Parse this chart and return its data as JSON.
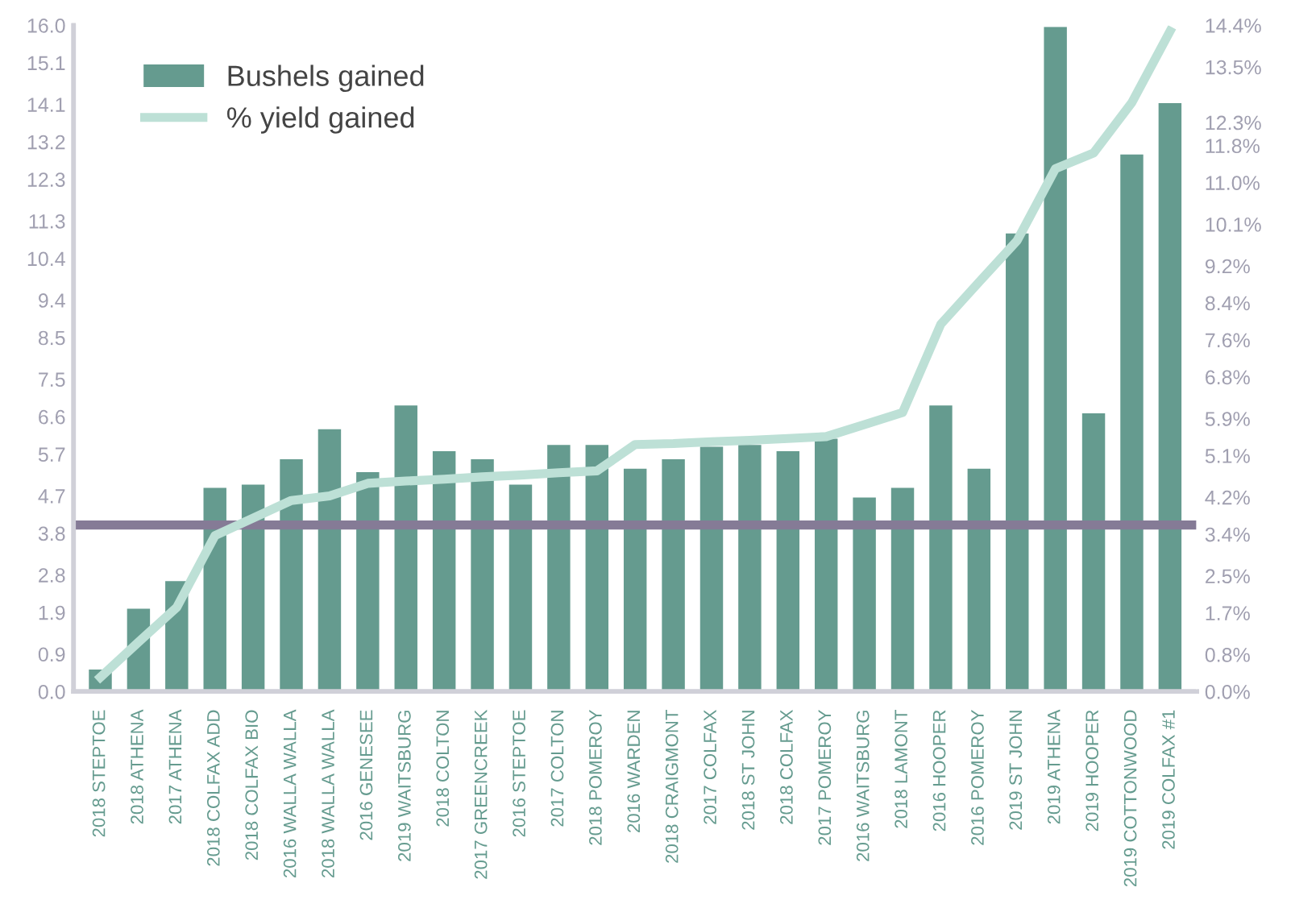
{
  "chart_data": {
    "type": "bar",
    "categories": [
      "2018 STEPTOE",
      "2018 ATHENA",
      "2017 ATHENA",
      "2018 COLFAX ADD",
      "2018 COLFAX BIO",
      "2016 WALLA WALLA",
      "2018 WALLA WALLA",
      "2016 GENESEE",
      "2019 WAITSBURG",
      "2018 COLTON",
      "2017 GREENCREEK",
      "2016 STEPTOE",
      "2017 COLTON",
      "2018 POMEROY",
      "2016 WARDEN",
      "2018 CRAIGMONT",
      "2017 COLFAX",
      "2018 ST JOHN",
      "2018 COLFAX",
      "2017 POMEROY",
      "2016 WAITSBURG",
      "2018 LAMONT",
      "2016 HOOPER",
      "2016 POMEROY",
      "2019 ST JOHN",
      "2019 ATHENA",
      "2019 HOOPER",
      "2019 COTTONWOOD",
      "2019 COLFAX #1"
    ],
    "series": [
      {
        "name": "Bushels gained",
        "color": "#659b8f",
        "values": [
          0.53,
          1.99,
          2.65,
          4.89,
          4.97,
          5.58,
          6.3,
          5.27,
          6.87,
          5.77,
          5.58,
          4.97,
          5.92,
          5.92,
          5.35,
          5.58,
          5.88,
          5.92,
          5.77,
          6.07,
          4.66,
          4.89,
          6.87,
          5.35,
          11.0,
          15.96,
          6.68,
          12.9,
          14.13
        ]
      },
      {
        "name": "% yield gained",
        "type": "line",
        "axis": "y2",
        "color": "#bde0d6",
        "values": [
          0.31,
          1.07,
          1.82,
          3.37,
          3.75,
          4.13,
          4.23,
          4.5,
          4.55,
          4.59,
          4.64,
          4.68,
          4.73,
          4.77,
          5.34,
          5.36,
          5.4,
          5.43,
          5.47,
          5.51,
          5.77,
          6.03,
          7.94,
          8.85,
          9.75,
          11.3,
          11.64,
          12.73,
          14.27
        ]
      }
    ],
    "ylim": [
      0,
      16
    ],
    "yticks": [
      {
        "value": 0,
        "label": "0.0"
      },
      {
        "value": 0.9,
        "label": "0.9"
      },
      {
        "value": 1.9,
        "label": "1.9"
      },
      {
        "value": 2.8,
        "label": "2.8"
      },
      {
        "value": 3.8,
        "label": "3.8"
      },
      {
        "value": 4.7,
        "label": "4.7"
      },
      {
        "value": 5.7,
        "label": "5.7"
      },
      {
        "value": 6.6,
        "label": "6.6"
      },
      {
        "value": 7.5,
        "label": "7.5"
      },
      {
        "value": 8.5,
        "label": "8.5"
      },
      {
        "value": 9.4,
        "label": "9.4"
      },
      {
        "value": 10.4,
        "label": "10.4"
      },
      {
        "value": 11.3,
        "label": "11.3"
      },
      {
        "value": 12.3,
        "label": "12.3"
      },
      {
        "value": 13.2,
        "label": "13.2"
      },
      {
        "value": 14.1,
        "label": "14.1"
      },
      {
        "value": 15.1,
        "label": "15.1"
      },
      {
        "value": 16,
        "label": "16.0"
      }
    ],
    "y2lim": [
      0,
      14.4
    ],
    "y2ticks": [
      {
        "value": 0,
        "label": "0.0%"
      },
      {
        "value": 0.8,
        "label": "0.8%"
      },
      {
        "value": 1.7,
        "label": "1.7%"
      },
      {
        "value": 2.5,
        "label": "2.5%"
      },
      {
        "value": 3.4,
        "label": "3.4%"
      },
      {
        "value": 4.2,
        "label": "4.2%"
      },
      {
        "value": 5.1,
        "label": "5.1%"
      },
      {
        "value": 5.9,
        "label": "5.9%"
      },
      {
        "value": 6.8,
        "label": "6.8%"
      },
      {
        "value": 7.6,
        "label": "7.6%"
      },
      {
        "value": 8.4,
        "label": "8.4%"
      },
      {
        "value": 9.2,
        "label": "9.2%"
      },
      {
        "value": 10.1,
        "label": "10.1%"
      },
      {
        "value": 11.0,
        "label": "11.0%"
      },
      {
        "value": 11.8,
        "label": "11.8%"
      },
      {
        "value": 12.3,
        "label": "12.3%"
      },
      {
        "value": 13.5,
        "label": "13.5%"
      },
      {
        "value": 14.4,
        "label": "14.4%"
      }
    ],
    "ref_lines": [
      {
        "axis": "y",
        "value": 4.0,
        "color": "#857b96"
      }
    ],
    "grid": false,
    "legend": "top left"
  }
}
